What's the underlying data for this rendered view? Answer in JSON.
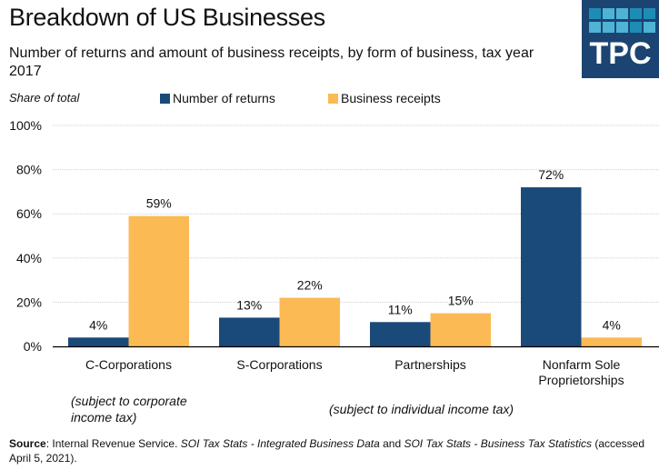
{
  "header": {
    "title": "Breakdown of US Businesses",
    "subtitle": "Number of returns and amount of business  receipts, by form of business, tax year 2017",
    "logo_text": "TPC"
  },
  "colors": {
    "returns": "#1a4a7a",
    "receipts": "#fcba55",
    "logo_bg": "#1b4472"
  },
  "chart_data": {
    "type": "bar",
    "title": "Breakdown of US Businesses",
    "subtitle": "Number of returns and amount of business  receipts, by form of business, tax year 2017",
    "ylabel": "Share of total",
    "xlabel": "",
    "ylim": [
      0,
      100
    ],
    "yticks": [
      0,
      20,
      40,
      60,
      80,
      100
    ],
    "ytick_labels": [
      "0%",
      "20%",
      "40%",
      "60%",
      "80%",
      "100%"
    ],
    "grid": true,
    "legend_position": "top",
    "categories": [
      "C-Corporations",
      "S-Corporations",
      "Partnerships",
      "Nonfarm Sole Proprietorships"
    ],
    "category_lines": [
      [
        "C-Corporations"
      ],
      [
        "S-Corporations"
      ],
      [
        "Partnerships"
      ],
      [
        "Nonfarm Sole",
        "Proprietorships"
      ]
    ],
    "series": [
      {
        "name": "Number of returns",
        "values": [
          4,
          13,
          11,
          72
        ],
        "labels": [
          "4%",
          "13%",
          "11%",
          "72%"
        ]
      },
      {
        "name": "Business receipts",
        "values": [
          59,
          22,
          15,
          4
        ],
        "labels": [
          "59%",
          "22%",
          "15%",
          "4%"
        ]
      }
    ],
    "annotations": [
      {
        "text_lines": [
          "(subject to corporate",
          "income tax)"
        ]
      },
      {
        "text_lines": [
          "(subject to individual income tax)"
        ]
      }
    ]
  },
  "footer": {
    "source_label": "Source",
    "source_text_1": ": Internal Revenue  Service.  ",
    "source_italic_1": "SOI Tax Stats - Integrated Business Data",
    "source_text_2": " and ",
    "source_italic_2": "SOI Tax Stats - Business Tax Statistics",
    "source_text_3": " (accessed  April 5, 2021)."
  }
}
